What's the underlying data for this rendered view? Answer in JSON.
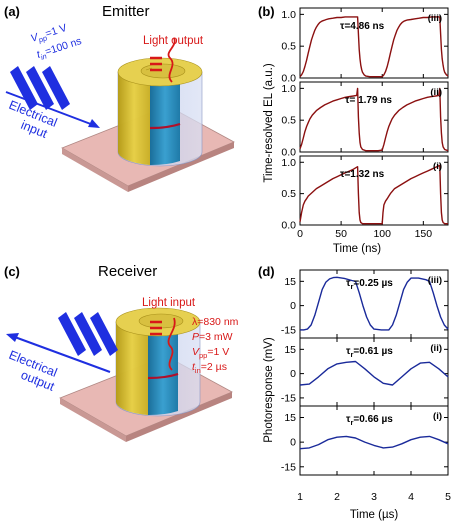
{
  "figure": {
    "emitter": {
      "panel_label": "(a)",
      "title": "Emitter",
      "light_label": "Light output",
      "vpp_label": "V",
      "vpp_sub": "pp",
      "vpp_value": "=1 V",
      "tin_label": "t",
      "tin_sub": "in",
      "tin_value": "=100 ns",
      "input_line1": "Electrical",
      "input_line2": "input"
    },
    "receiver": {
      "panel_label": "(c)",
      "title": "Receiver",
      "light_label": "Light input",
      "lambda_line": "λ=830 nm",
      "p_label": "P",
      "p_value": "=3 mW",
      "vpp_label": "V",
      "vpp_sub": "pp",
      "vpp_value": "=1 V",
      "tin_label": "t",
      "tin_sub": "in",
      "tin_value": "=2 µs",
      "output_line1": "Electrical",
      "output_line2": "output"
    },
    "colors": {
      "emitter_trace": "#8b1010",
      "receiver_trace": "#1a2a9a",
      "arrow_blue": "#1f2fe0",
      "light_red": "#d81818"
    }
  },
  "chart_data": [
    {
      "panel_label": "(b)",
      "type": "line",
      "xlabel": "Time (ns)",
      "ylabel": "Time-resolved EL (a.u.)",
      "xlim": [
        0,
        180
      ],
      "xticks": [
        "0",
        "50",
        "100",
        "150"
      ],
      "subplots": [
        {
          "label": "(iii)",
          "annotation": "τ=4.86 ns",
          "ylim": [
            0,
            1.1
          ],
          "yticks": [
            "0.0",
            "0.5",
            "1.0"
          ],
          "x": [
            0,
            2,
            4,
            6,
            8,
            10,
            12,
            14,
            16,
            18,
            20,
            22,
            24,
            26,
            28,
            30,
            32,
            35,
            40,
            45,
            50,
            55,
            60,
            65,
            70,
            71,
            72,
            73,
            74,
            75,
            76,
            78,
            80,
            85,
            90,
            95,
            100,
            102,
            104,
            106,
            108,
            110,
            112,
            114,
            116,
            118,
            120,
            122,
            124,
            126,
            128,
            130,
            135,
            140,
            145,
            150,
            155,
            160,
            165,
            170,
            171,
            172,
            173,
            174,
            175,
            176,
            178,
            180
          ],
          "values": [
            0.02,
            0.05,
            0.1,
            0.18,
            0.28,
            0.39,
            0.5,
            0.6,
            0.68,
            0.75,
            0.8,
            0.84,
            0.87,
            0.89,
            0.9,
            0.91,
            0.92,
            0.93,
            0.94,
            0.95,
            0.95,
            0.96,
            0.96,
            0.96,
            0.96,
            0.7,
            0.45,
            0.3,
            0.2,
            0.13,
            0.09,
            0.05,
            0.03,
            0.02,
            0.02,
            0.02,
            0.02,
            0.05,
            0.1,
            0.18,
            0.28,
            0.39,
            0.5,
            0.6,
            0.68,
            0.75,
            0.8,
            0.84,
            0.87,
            0.89,
            0.9,
            0.91,
            0.92,
            0.93,
            0.94,
            0.95,
            0.95,
            0.96,
            0.96,
            0.96,
            0.7,
            0.45,
            0.3,
            0.2,
            0.13,
            0.09,
            0.05,
            0.03
          ]
        },
        {
          "label": "(ii)",
          "annotation": "τ= 1.79 ns",
          "ylim": [
            0,
            1.1
          ],
          "yticks": [
            "0.0",
            "0.5",
            "1.0"
          ],
          "x": [
            0,
            2,
            4,
            6,
            8,
            10,
            12,
            15,
            20,
            25,
            30,
            35,
            40,
            45,
            50,
            55,
            60,
            65,
            69,
            70,
            71,
            72,
            73,
            74,
            76,
            80,
            85,
            90,
            95,
            100,
            102,
            104,
            106,
            108,
            110,
            112,
            115,
            120,
            125,
            130,
            135,
            140,
            145,
            150,
            155,
            160,
            165,
            169,
            170,
            171,
            172,
            173,
            174,
            176,
            180
          ],
          "values": [
            0.05,
            0.12,
            0.22,
            0.32,
            0.4,
            0.46,
            0.52,
            0.58,
            0.65,
            0.7,
            0.74,
            0.77,
            0.8,
            0.82,
            0.84,
            0.86,
            0.87,
            0.88,
            0.89,
            1.0,
            0.55,
            0.3,
            0.15,
            0.08,
            0.04,
            0.02,
            0.02,
            0.02,
            0.02,
            0.03,
            0.12,
            0.22,
            0.32,
            0.4,
            0.46,
            0.52,
            0.58,
            0.65,
            0.7,
            0.74,
            0.77,
            0.8,
            0.82,
            0.84,
            0.86,
            0.87,
            0.88,
            0.89,
            1.0,
            0.55,
            0.3,
            0.15,
            0.08,
            0.04,
            0.02
          ]
        },
        {
          "label": "(i)",
          "annotation": "τ=1.32 ns",
          "ylim": [
            0,
            1.1
          ],
          "yticks": [
            "0.0",
            "0.5",
            "1.0"
          ],
          "x": [
            0,
            2,
            4,
            6,
            8,
            10,
            15,
            20,
            25,
            30,
            35,
            40,
            45,
            50,
            55,
            60,
            65,
            70,
            71,
            72,
            73,
            74,
            76,
            80,
            85,
            90,
            95,
            100,
            101,
            102,
            104,
            106,
            108,
            110,
            115,
            120,
            125,
            130,
            135,
            140,
            145,
            150,
            155,
            160,
            165,
            170,
            171,
            172,
            173,
            174,
            176,
            180
          ],
          "values": [
            0.05,
            0.2,
            0.32,
            0.38,
            0.42,
            0.46,
            0.52,
            0.58,
            0.62,
            0.66,
            0.7,
            0.74,
            0.77,
            0.8,
            0.83,
            0.86,
            0.89,
            0.93,
            0.5,
            0.2,
            0.08,
            0.04,
            0.02,
            0.02,
            0.02,
            0.02,
            0.02,
            0.02,
            0.2,
            0.32,
            0.38,
            0.42,
            0.46,
            0.5,
            0.58,
            0.62,
            0.66,
            0.7,
            0.74,
            0.77,
            0.8,
            0.83,
            0.86,
            0.89,
            0.92,
            0.95,
            0.5,
            0.2,
            0.08,
            0.04,
            0.02,
            0.02
          ]
        }
      ]
    },
    {
      "panel_label": "(d)",
      "type": "line",
      "xlabel": "Time (µs)",
      "ylabel": "Photoresponse (mV)",
      "xlim": [
        1,
        5
      ],
      "xticks": [
        "1",
        "2",
        "3",
        "4",
        "5"
      ],
      "subplots": [
        {
          "label": "(iii)",
          "annotation_main": "τ",
          "annotation_sub": "r",
          "annotation_value": "=0.25 µs",
          "ylim": [
            -20,
            22
          ],
          "yticks": [
            "-15",
            "0",
            "15"
          ],
          "x": [
            1.0,
            1.1,
            1.2,
            1.3,
            1.4,
            1.5,
            1.6,
            1.7,
            1.8,
            1.9,
            2.0,
            2.2,
            2.4,
            2.5,
            2.6,
            2.7,
            2.8,
            2.9,
            3.0,
            3.2,
            3.4,
            3.5,
            3.6,
            3.7,
            3.8,
            3.9,
            4.0,
            4.2,
            4.4,
            4.5,
            4.6,
            4.7,
            4.8,
            4.9,
            5.0
          ],
          "values": [
            -15,
            -15,
            -14.5,
            -12,
            -6,
            2,
            10,
            14.5,
            16.5,
            17.3,
            17.5,
            16.8,
            15.5,
            15,
            8,
            0,
            -7,
            -12,
            -14.5,
            -15,
            -15,
            -12,
            -6,
            2,
            10,
            14.5,
            17,
            17,
            16,
            15,
            8,
            0,
            -7,
            -12,
            -14.5
          ]
        },
        {
          "label": "(ii)",
          "annotation_main": "τ",
          "annotation_sub": "r",
          "annotation_value": "=0.61 µs",
          "ylim": [
            -20,
            22
          ],
          "yticks": [
            "-15",
            "0",
            "15"
          ],
          "x": [
            1.0,
            1.25,
            1.5,
            1.75,
            2.0,
            2.25,
            2.5,
            2.75,
            3.0,
            3.25,
            3.5,
            3.75,
            4.0,
            4.25,
            4.5,
            4.75,
            5.0
          ],
          "values": [
            -7,
            -6.5,
            -2,
            3,
            6,
            7,
            7.5,
            3,
            -2,
            -6,
            -7,
            -2,
            3,
            6.5,
            7,
            3,
            -2
          ]
        },
        {
          "label": "(i)",
          "annotation_main": "τ",
          "annotation_sub": "r",
          "annotation_value": "=0.66 µs",
          "ylim": [
            -20,
            22
          ],
          "yticks": [
            "-15",
            "0",
            "15"
          ],
          "x": [
            1.0,
            1.25,
            1.5,
            1.75,
            2.0,
            2.25,
            2.5,
            2.75,
            3.0,
            3.25,
            3.5,
            3.75,
            4.0,
            4.25,
            4.5,
            4.75,
            5.0
          ],
          "values": [
            -4,
            -3.5,
            -1.5,
            1.5,
            3,
            3.5,
            2.5,
            0,
            -2,
            -3.5,
            -3,
            -1,
            1.5,
            3,
            3.5,
            1.5,
            -1
          ]
        }
      ]
    }
  ]
}
